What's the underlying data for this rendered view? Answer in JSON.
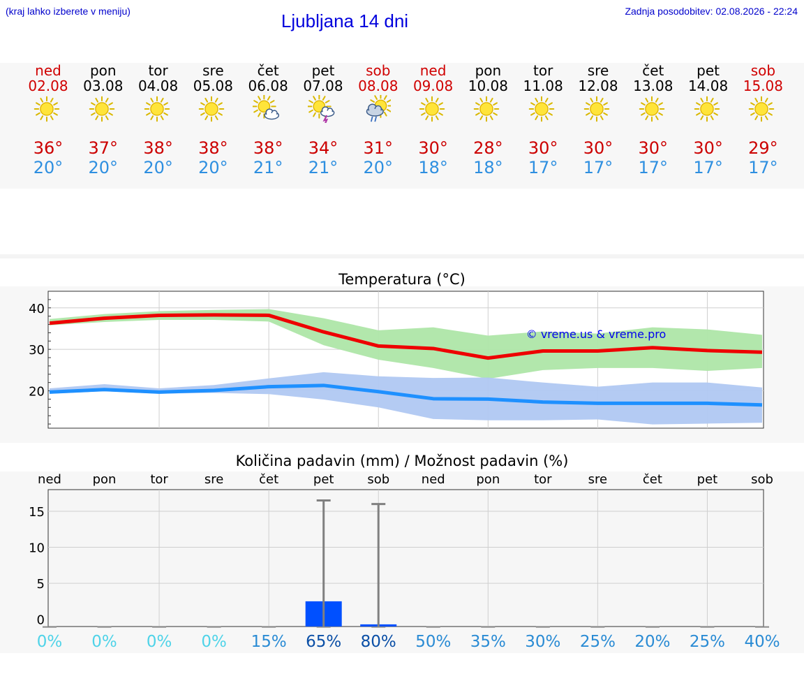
{
  "header": {
    "note": "(kraj lahko izberete v meniju)",
    "title": "Ljubljana 14 dni",
    "update": "Zadnja posodobitev: 02.08.2026 - 22:24"
  },
  "days": [
    {
      "name": "ned",
      "date": "02.08",
      "weekend": true,
      "icon": "sun-icon",
      "max": "36°",
      "min": "20°"
    },
    {
      "name": "pon",
      "date": "03.08",
      "weekend": false,
      "icon": "sun-icon",
      "max": "37°",
      "min": "20°"
    },
    {
      "name": "tor",
      "date": "04.08",
      "weekend": false,
      "icon": "sun-icon",
      "max": "38°",
      "min": "20°"
    },
    {
      "name": "sre",
      "date": "05.08",
      "weekend": false,
      "icon": "sun-icon",
      "max": "38°",
      "min": "20°"
    },
    {
      "name": "čet",
      "date": "06.08",
      "weekend": false,
      "icon": "sun-cloud-icon",
      "max": "38°",
      "min": "21°"
    },
    {
      "name": "pet",
      "date": "07.08",
      "weekend": false,
      "icon": "sun-thunderstorm-icon",
      "max": "34°",
      "min": "21°"
    },
    {
      "name": "sob",
      "date": "08.08",
      "weekend": true,
      "icon": "sun-rain-icon",
      "max": "31°",
      "min": "20°"
    },
    {
      "name": "ned",
      "date": "09.08",
      "weekend": true,
      "icon": "sun-icon",
      "max": "30°",
      "min": "18°"
    },
    {
      "name": "pon",
      "date": "10.08",
      "weekend": false,
      "icon": "sun-icon",
      "max": "28°",
      "min": "18°"
    },
    {
      "name": "tor",
      "date": "11.08",
      "weekend": false,
      "icon": "sun-icon",
      "max": "30°",
      "min": "17°"
    },
    {
      "name": "sre",
      "date": "12.08",
      "weekend": false,
      "icon": "sun-icon",
      "max": "30°",
      "min": "17°"
    },
    {
      "name": "čet",
      "date": "13.08",
      "weekend": false,
      "icon": "sun-icon",
      "max": "30°",
      "min": "17°"
    },
    {
      "name": "pet",
      "date": "14.08",
      "weekend": false,
      "icon": "sun-icon",
      "max": "30°",
      "min": "17°"
    },
    {
      "name": "sob",
      "date": "15.08",
      "weekend": true,
      "icon": "sun-icon",
      "max": "29°",
      "min": "17°"
    }
  ],
  "colors": {
    "max_temp": "#cc0000",
    "min_temp": "#2e8fe0",
    "max_line": "#ee0000",
    "min_line": "#1e90ff",
    "max_band": "#aee6a8",
    "min_band": "#b0c8f2",
    "precip_bar": "#0050ff",
    "weekend": "#d00000"
  },
  "chart_data": [
    {
      "type": "line",
      "title": "Temperatura (°C)",
      "watermark": "© vreme.us & vreme.pro",
      "ylim": [
        11,
        44
      ],
      "yticks": [
        20,
        30,
        40
      ],
      "grid": true,
      "x": [
        "02.08",
        "03.08",
        "04.08",
        "05.08",
        "06.08",
        "07.08",
        "08.08",
        "09.08",
        "10.08",
        "11.08",
        "12.08",
        "13.08",
        "14.08",
        "15.08"
      ],
      "series": [
        {
          "values": [
            36.3,
            37.5,
            38.2,
            38.3,
            38.2,
            34.2,
            30.8,
            30.2,
            27.9,
            29.6,
            29.6,
            30.4,
            29.7,
            29.3
          ],
          "range_low": [
            35.8,
            36.6,
            37.1,
            37.1,
            36.7,
            31.0,
            27.5,
            25.5,
            22.9,
            25.0,
            25.5,
            25.5,
            24.8,
            25.5
          ],
          "range_high": [
            37.3,
            38.5,
            39.2,
            39.5,
            39.7,
            37.5,
            34.6,
            35.3,
            33.3,
            34.3,
            33.8,
            35.3,
            34.8,
            33.5
          ]
        },
        {
          "values": [
            19.7,
            20.3,
            19.7,
            20.1,
            21.0,
            21.3,
            19.8,
            18.1,
            18.0,
            17.3,
            17.0,
            17.0,
            17.0,
            16.6
          ],
          "range_low": [
            19.3,
            19.9,
            19.3,
            19.5,
            19.2,
            17.9,
            16.0,
            13.2,
            12.9,
            12.9,
            13.1,
            11.9,
            12.1,
            12.3
          ],
          "range_high": [
            20.6,
            21.6,
            20.6,
            21.4,
            23.0,
            24.5,
            23.5,
            23.1,
            23.2,
            22.0,
            21.0,
            22.0,
            22.0,
            20.8
          ]
        }
      ]
    },
    {
      "type": "bar",
      "title": "Količina padavin (mm) / Možnost padavin (%)",
      "categories": [
        "ned",
        "pon",
        "tor",
        "sre",
        "čet",
        "pet",
        "sob",
        "ned",
        "pon",
        "tor",
        "sre",
        "čet",
        "pet",
        "sob"
      ],
      "ylim": [
        -1,
        18
      ],
      "yticks": [
        0,
        5,
        10,
        15
      ],
      "values": [
        0,
        0,
        0,
        0,
        0,
        3.6,
        0.4,
        0,
        0,
        0,
        0,
        0,
        0,
        0
      ],
      "range_high": [
        0,
        0,
        0,
        0,
        0,
        16.5,
        16.0,
        0,
        0,
        0,
        0,
        0,
        0,
        0
      ],
      "probability": [
        "0%",
        "0%",
        "0%",
        "0%",
        "15%",
        "65%",
        "80%",
        "50%",
        "35%",
        "30%",
        "25%",
        "20%",
        "25%",
        "40%"
      ],
      "probability_colors": [
        "#4fd3e8",
        "#4fd3e8",
        "#4fd3e8",
        "#4fd3e8",
        "#2a8bd4",
        "#0b4fa6",
        "#0b4fa6",
        "#2a8bd4",
        "#2a8bd4",
        "#2a8bd4",
        "#2a8bd4",
        "#2a8bd4",
        "#2a8bd4",
        "#2a8bd4"
      ]
    }
  ]
}
